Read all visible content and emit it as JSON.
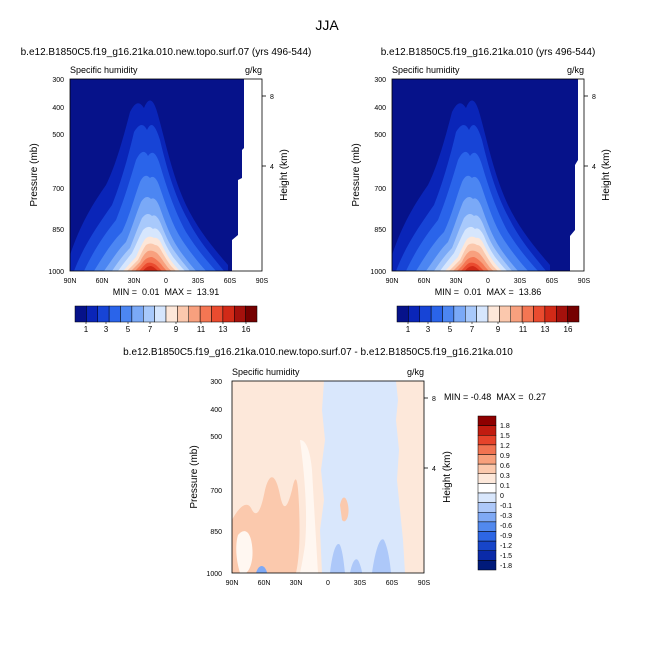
{
  "figure_title": "JJA",
  "colors": {
    "seq": [
      "#06128a",
      "#0a25b8",
      "#1744d6",
      "#2a64ea",
      "#4c86f2",
      "#7aa9f7",
      "#a8c9fb",
      "#d6e6fd",
      "#fde7d9",
      "#fbc8ad",
      "#f8a07e",
      "#f47653",
      "#ea4b2f",
      "#d22a17",
      "#a5110c",
      "#750000"
    ],
    "diff": [
      "#001a7a",
      "#0a2aa8",
      "#1745c9",
      "#2d66e4",
      "#5289ee",
      "#7fa9f5",
      "#adc8f9",
      "#d9e7fc",
      "#ffffff",
      "#fde8da",
      "#fbc9ad",
      "#f7a07c",
      "#f17351",
      "#e6432a",
      "#c11c10",
      "#8e0000"
    ]
  },
  "chart_data": [
    {
      "type": "heatmap",
      "title": "b.e12.B1850C5.f19_g16.21ka.010.new.topo.surf.07 (yrs 496-544)",
      "left_label": "Specific humidity",
      "right_label": "g/kg",
      "ylabel": "Pressure (mb)",
      "ylabel_right": "Height (km)",
      "x_ticks": [
        "90N",
        "60N",
        "30N",
        "0",
        "30S",
        "60S",
        "90S"
      ],
      "y_ticks": [
        "300",
        "400",
        "500",
        "700",
        "850",
        "1000"
      ],
      "right_ticks": [
        "8",
        "4"
      ],
      "stats": "MIN =  0.01  MAX =  13.91",
      "colorbar_labels": [
        "1",
        "3",
        "5",
        "7",
        "9",
        "11",
        "13",
        "16"
      ]
    },
    {
      "type": "heatmap",
      "title": "b.e12.B1850C5.f19_g16.21ka.010 (yrs 496-544)",
      "left_label": "Specific humidity",
      "right_label": "g/kg",
      "ylabel": "Pressure (mb)",
      "ylabel_right": "Height (km)",
      "x_ticks": [
        "90N",
        "60N",
        "30N",
        "0",
        "30S",
        "60S",
        "90S"
      ],
      "y_ticks": [
        "300",
        "400",
        "500",
        "700",
        "850",
        "1000"
      ],
      "right_ticks": [
        "8",
        "4"
      ],
      "stats": "MIN =  0.01  MAX =  13.86",
      "colorbar_labels": [
        "1",
        "3",
        "5",
        "7",
        "9",
        "11",
        "13",
        "16"
      ]
    },
    {
      "type": "heatmap",
      "title": "b.e12.B1850C5.f19_g16.21ka.010.new.topo.surf.07 - b.e12.B1850C5.f19_g16.21ka.010",
      "left_label": "Specific humidity",
      "right_label": "g/kg",
      "ylabel": "Pressure (mb)",
      "ylabel_right": "Height (km)",
      "x_ticks": [
        "90N",
        "60N",
        "30N",
        "0",
        "30S",
        "60S",
        "90S"
      ],
      "y_ticks": [
        "300",
        "400",
        "500",
        "700",
        "850",
        "1000"
      ],
      "right_ticks": [
        "8",
        "4"
      ],
      "stats": "MIN = -0.48  MAX =  0.27",
      "colorbar_labels": [
        "1.8",
        "1.5",
        "1.2",
        "0.9",
        "0.6",
        "0.3",
        "0.1",
        "0",
        "-0.1",
        "-0.3",
        "-0.6",
        "-0.9",
        "-1.2",
        "-1.5",
        "-1.8"
      ]
    }
  ]
}
